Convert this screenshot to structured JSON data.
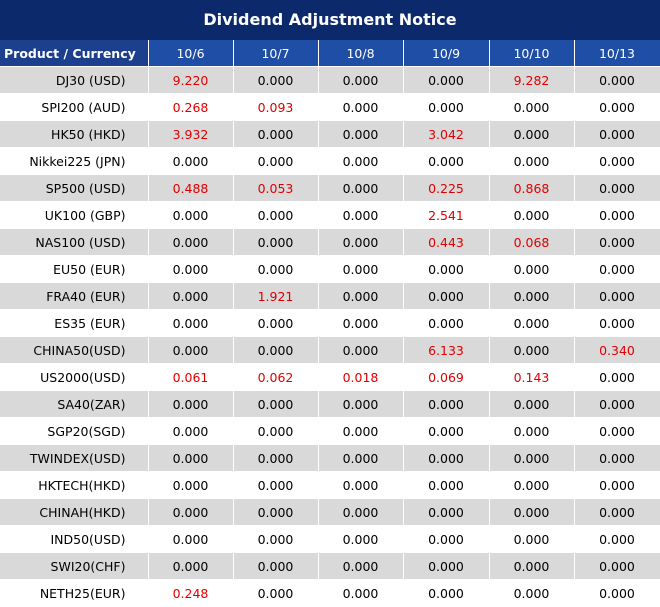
{
  "title": "Dividend Adjustment Notice",
  "table": {
    "header": [
      "Product / Currency",
      "10/6",
      "10/7",
      "10/8",
      "10/9",
      "10/10",
      "10/13"
    ],
    "rows": [
      [
        "DJ30 (USD)",
        "9.220",
        "0.000",
        "0.000",
        "0.000",
        "9.282",
        "0.000"
      ],
      [
        "SPI200 (AUD)",
        "0.268",
        "0.093",
        "0.000",
        "0.000",
        "0.000",
        "0.000"
      ],
      [
        "HK50 (HKD)",
        "3.932",
        "0.000",
        "0.000",
        "3.042",
        "0.000",
        "0.000"
      ],
      [
        "Nikkei225 (JPN)",
        "0.000",
        "0.000",
        "0.000",
        "0.000",
        "0.000",
        "0.000"
      ],
      [
        "SP500 (USD)",
        "0.488",
        "0.053",
        "0.000",
        "0.225",
        "0.868",
        "0.000"
      ],
      [
        "UK100 (GBP)",
        "0.000",
        "0.000",
        "0.000",
        "2.541",
        "0.000",
        "0.000"
      ],
      [
        "NAS100 (USD)",
        "0.000",
        "0.000",
        "0.000",
        "0.443",
        "0.068",
        "0.000"
      ],
      [
        "EU50 (EUR)",
        "0.000",
        "0.000",
        "0.000",
        "0.000",
        "0.000",
        "0.000"
      ],
      [
        "FRA40 (EUR)",
        "0.000",
        "1.921",
        "0.000",
        "0.000",
        "0.000",
        "0.000"
      ],
      [
        "ES35 (EUR)",
        "0.000",
        "0.000",
        "0.000",
        "0.000",
        "0.000",
        "0.000"
      ],
      [
        "CHINA50(USD)",
        "0.000",
        "0.000",
        "0.000",
        "6.133",
        "0.000",
        "0.340"
      ],
      [
        "US2000(USD)",
        "0.061",
        "0.062",
        "0.018",
        "0.069",
        "0.143",
        "0.000"
      ],
      [
        "SA40(ZAR)",
        "0.000",
        "0.000",
        "0.000",
        "0.000",
        "0.000",
        "0.000"
      ],
      [
        "SGP20(SGD)",
        "0.000",
        "0.000",
        "0.000",
        "0.000",
        "0.000",
        "0.000"
      ],
      [
        "TWINDEX(USD)",
        "0.000",
        "0.000",
        "0.000",
        "0.000",
        "0.000",
        "0.000"
      ],
      [
        "HKTECH(HKD)",
        "0.000",
        "0.000",
        "0.000",
        "0.000",
        "0.000",
        "0.000"
      ],
      [
        "CHINAH(HKD)",
        "0.000",
        "0.000",
        "0.000",
        "0.000",
        "0.000",
        "0.000"
      ],
      [
        "IND50(USD)",
        "0.000",
        "0.000",
        "0.000",
        "0.000",
        "0.000",
        "0.000"
      ],
      [
        "SWI20(CHF)",
        "0.000",
        "0.000",
        "0.000",
        "0.000",
        "0.000",
        "0.000"
      ],
      [
        "NETH25(EUR)",
        "0.248",
        "0.000",
        "0.000",
        "0.000",
        "0.000",
        "0.000"
      ]
    ]
  }
}
